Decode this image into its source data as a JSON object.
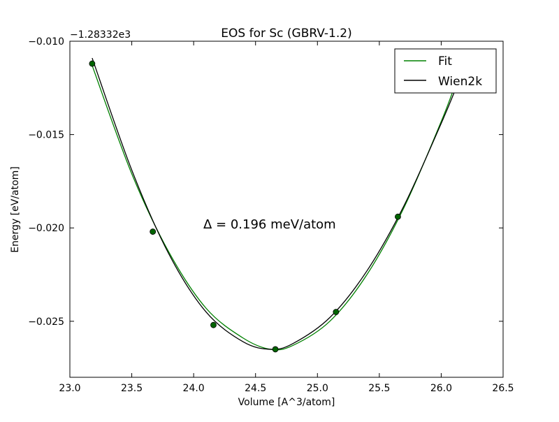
{
  "chart_data": {
    "type": "line",
    "title": "EOS for Sc (GBRV-1.2)",
    "xlabel": "Volume [A^3/atom]",
    "ylabel": "Energy [eV/atom]",
    "offset_label": "−1.28332e3",
    "annotation": "Δ = 0.196 meV/atom",
    "xlim": [
      23.0,
      26.5
    ],
    "ylim": [
      -0.028,
      -0.01
    ],
    "xticks": [
      23.0,
      23.5,
      24.0,
      24.5,
      25.0,
      25.5,
      26.0,
      26.5
    ],
    "xtick_labels": [
      "23.0",
      "23.5",
      "24.0",
      "24.5",
      "25.0",
      "25.5",
      "26.0",
      "26.5"
    ],
    "yticks": [
      -0.025,
      -0.02,
      -0.015,
      -0.01
    ],
    "ytick_labels": [
      "−0.025",
      "−0.020",
      "−0.015",
      "−0.010"
    ],
    "legend_position": "top-right",
    "points": {
      "color": "#006400",
      "x": [
        23.18,
        23.67,
        24.16,
        24.66,
        25.15,
        25.65
      ],
      "y": [
        -0.0112,
        -0.0202,
        -0.0252,
        -0.0265,
        -0.0245,
        -0.0194
      ]
    },
    "series": [
      {
        "name": "Fit",
        "color": "#008000",
        "x": [
          23.18,
          23.5,
          23.8,
          24.1,
          24.4,
          24.62,
          24.8,
          25.1,
          25.4,
          25.7,
          26.0,
          26.12
        ],
        "y": [
          -0.0113,
          -0.0171,
          -0.0213,
          -0.0243,
          -0.0259,
          -0.0265,
          -0.0263,
          -0.025,
          -0.0225,
          -0.0189,
          -0.0143,
          -0.0122
        ]
      },
      {
        "name": "Wien2k",
        "color": "#000000",
        "x": [
          23.18,
          23.5,
          23.8,
          24.1,
          24.4,
          24.62,
          24.8,
          25.1,
          25.4,
          25.7,
          26.0,
          26.12
        ],
        "y": [
          -0.0109,
          -0.0169,
          -0.0214,
          -0.0245,
          -0.0261,
          -0.0265,
          -0.0262,
          -0.0248,
          -0.0223,
          -0.0188,
          -0.0144,
          -0.0125
        ]
      }
    ]
  }
}
